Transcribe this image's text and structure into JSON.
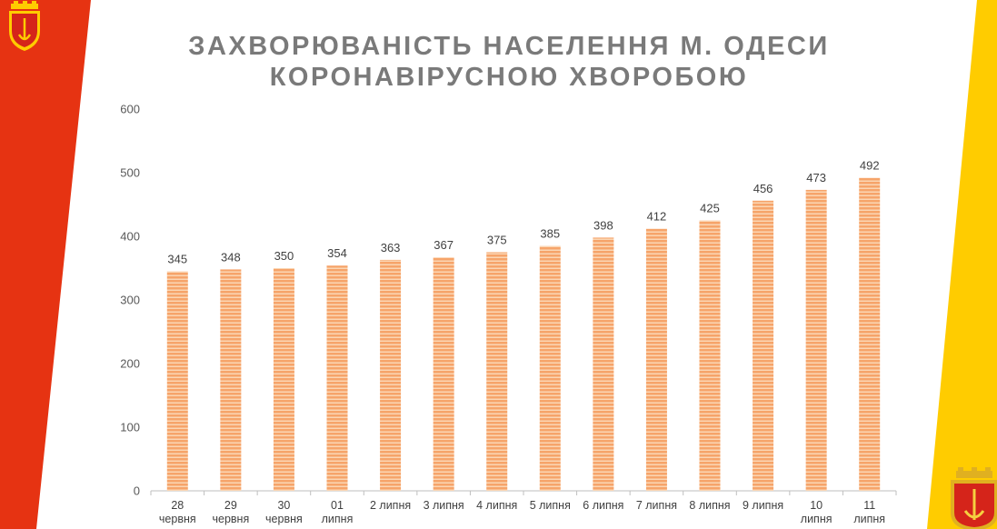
{
  "slide": {
    "title_line1": "ЗАХВОРЮВАНІСТЬ НАСЕЛЕННЯ М. ОДЕСИ",
    "title_line2": "КОРОНАВІРУСНОЮ ХВОРОБОЮ",
    "colors": {
      "left_band": "#e63312",
      "right_band": "#ffcc00",
      "bar_fill": "#f6a46a",
      "bar_stripe": "#fbd6b4",
      "title_text": "#7a7a7a"
    },
    "icons": [
      "odesa-coat-of-arms-icon-top-left",
      "odesa-coat-of-arms-icon-bottom-right"
    ]
  },
  "chart_data": {
    "type": "bar",
    "title": "ЗАХВОРЮВАНІСТЬ НАСЕЛЕННЯ М. ОДЕСИ КОРОНАВІРУСНОЮ ХВОРОБОЮ",
    "xlabel": "",
    "ylabel": "",
    "categories": [
      [
        "28",
        "червня"
      ],
      [
        "29",
        "червня"
      ],
      [
        "30",
        "червня"
      ],
      [
        "01",
        "липня"
      ],
      [
        "2 липня"
      ],
      [
        "3 липня"
      ],
      [
        "4 липня"
      ],
      [
        "5 липня"
      ],
      [
        "6 липня"
      ],
      [
        "7 липня"
      ],
      [
        "8 липня"
      ],
      [
        "9 липня"
      ],
      [
        "10",
        "липня"
      ],
      [
        "11",
        "липня"
      ]
    ],
    "values": [
      345,
      348,
      350,
      354,
      363,
      367,
      375,
      385,
      398,
      412,
      425,
      456,
      473,
      492
    ],
    "ylim": [
      0,
      600
    ],
    "yticks": [
      0,
      100,
      200,
      300,
      400,
      500,
      600
    ],
    "grid": false,
    "legend": "none",
    "data_labels": true
  }
}
